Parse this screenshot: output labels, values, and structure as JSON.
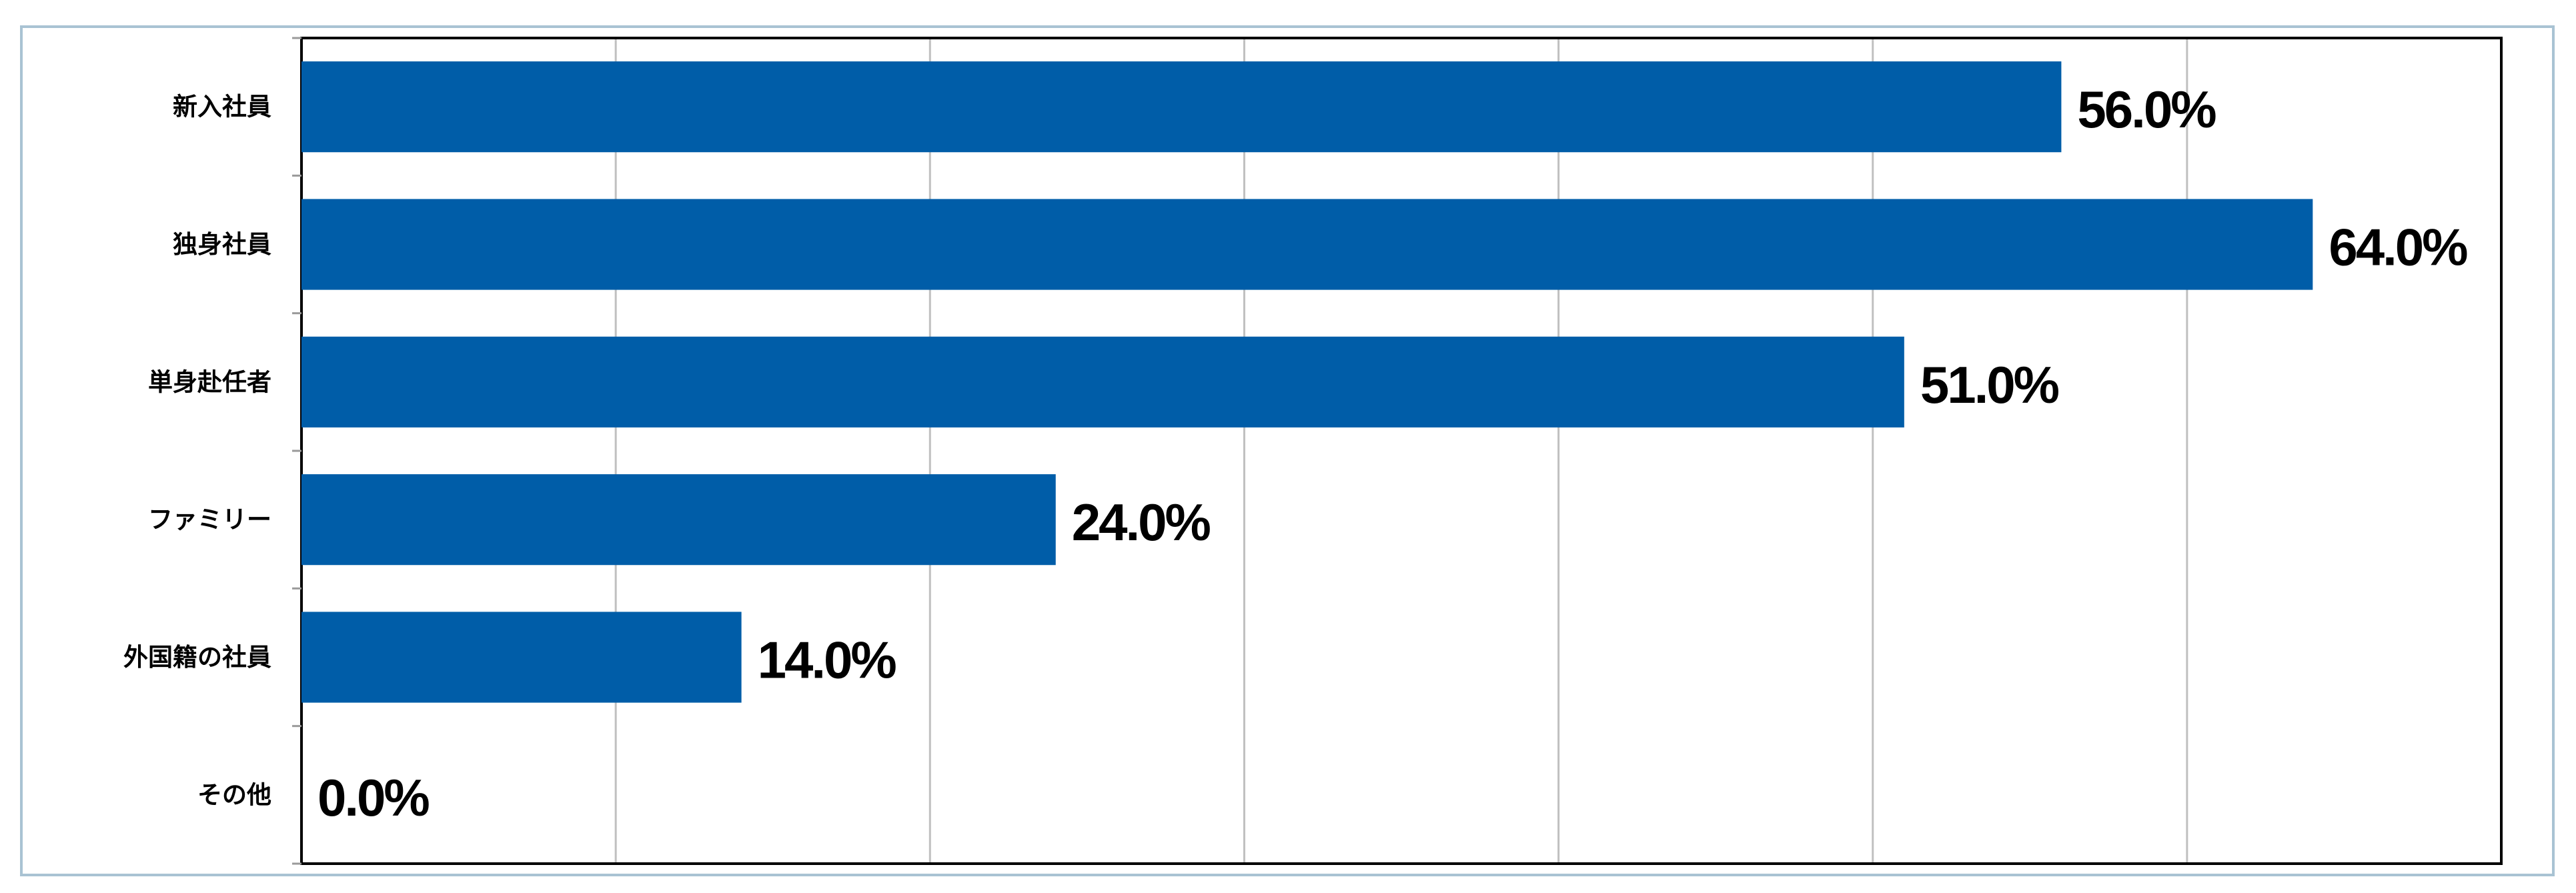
{
  "chart_data": {
    "type": "bar",
    "orientation": "horizontal",
    "categories": [
      "新入社員",
      "独身社員",
      "単身赴任者",
      "ファミリー",
      "外国籍の社員",
      "その他"
    ],
    "values": [
      56.0,
      64.0,
      51.0,
      24.0,
      14.0,
      0.0
    ],
    "value_labels": [
      "56.0%",
      "64.0%",
      "51.0%",
      "24.0%",
      "14.0%",
      "0.0%"
    ],
    "title": "",
    "xlabel": "",
    "ylabel": "",
    "xlim": [
      0,
      70
    ],
    "grid": true,
    "legend": "none",
    "colors": {
      "bar": "#005da8",
      "grid": "#c0c0c0",
      "axis": "#000000",
      "frame_border": "#a9c3d3"
    }
  }
}
